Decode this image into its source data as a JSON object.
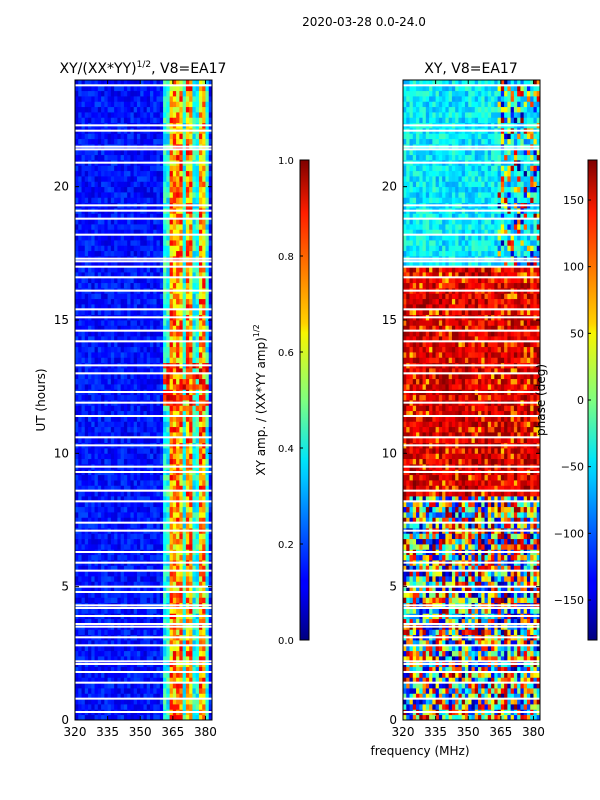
{
  "suptitle": "2020-03-28 0.0-24.0",
  "xlabel_shared": "frequency (MHz)",
  "chart_data": [
    {
      "type": "heatmap",
      "title_main": "XY/(XX*YY)",
      "title_sup": "1/2",
      "title_rest": ", V8=EA17",
      "xlabel": "",
      "ylabel": "UT (hours)",
      "xlim": [
        320,
        383
      ],
      "ylim": [
        0,
        24
      ],
      "xticks": [
        320,
        335,
        350,
        365,
        380
      ],
      "yticks": [
        0,
        5,
        10,
        15,
        20
      ],
      "colorbar": {
        "label_main": "XY amp. / (XX*YY amp)",
        "label_sup": "1/2",
        "range": [
          0.0,
          1.0
        ],
        "ticks": [
          "0.0",
          "0.2",
          "0.4",
          "0.6",
          "0.8",
          "1.0"
        ],
        "colormap": "jet"
      },
      "bright_band_mhz": [
        361,
        382
      ],
      "strong_channels_mhz": [
        365,
        368,
        373,
        378
      ],
      "description_values": "background ~0.1-0.2; band 361-382 MHz ~0.3-0.9"
    },
    {
      "type": "heatmap",
      "title": "XY, V8=EA17",
      "xlabel": "frequency (MHz)",
      "ylabel": "",
      "xlim": [
        320,
        383
      ],
      "ylim": [
        0,
        24
      ],
      "xticks": [
        320,
        335,
        350,
        365,
        380
      ],
      "yticks": [
        0,
        5,
        10,
        15,
        20
      ],
      "colorbar": {
        "label": "phase (deg)",
        "range": [
          -180,
          180
        ],
        "ticks": [
          "150",
          "100",
          "50",
          "0",
          "−50",
          "−100",
          "−150"
        ],
        "tick_values": [
          150,
          100,
          50,
          0,
          -50,
          -100,
          -150
        ],
        "colormap": "jet"
      },
      "phase_regimes": [
        {
          "ut_start": 0,
          "ut_end": 8.5,
          "phase_deg": "mixed -180..180"
        },
        {
          "ut_start": 8.5,
          "ut_end": 17,
          "phase_deg": "~120..180"
        },
        {
          "ut_start": 17,
          "ut_end": 24,
          "phase_deg": "~-80..-20"
        }
      ]
    }
  ],
  "flagged_ut_hours": [
    0.3,
    0.8,
    1.4,
    1.8,
    2.1,
    2.2,
    2.8,
    3.1,
    3.5,
    3.6,
    3.9,
    4.2,
    4.3,
    4.8,
    5.0,
    5.6,
    5.9,
    6.3,
    7.1,
    7.4,
    8.2,
    8.6,
    9.3,
    9.5,
    10.3,
    10.6,
    11.4,
    11.9,
    12.3,
    13.0,
    13.3,
    14.2,
    14.6,
    15.1,
    15.4,
    16.1,
    16.6,
    17.0,
    17.2,
    17.3,
    18.2,
    18.8,
    19.1,
    19.3,
    20.9,
    21.4,
    21.5,
    22.1,
    22.3,
    23.8
  ]
}
